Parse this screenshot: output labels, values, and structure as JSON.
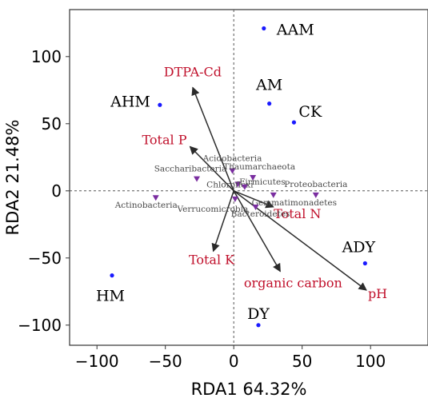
{
  "chart_data": {
    "type": "scatter",
    "title": "",
    "xlabel": "RDA1 64.32%",
    "ylabel": "RDA2 21.48%",
    "xlim": [
      -120,
      142
    ],
    "ylim": [
      -115,
      135
    ],
    "xticks": [
      -100,
      -50,
      0,
      50,
      100
    ],
    "yticks": [
      -100,
      -50,
      0,
      50,
      100
    ],
    "zero_lines": true,
    "grid": false,
    "colors": {
      "sample_point": "#1a1aff",
      "env_label": "#c0102b",
      "arrow": "#2b2b2b",
      "taxa_marker": "#7a2da0",
      "taxa_label": "#4a4a4a"
    },
    "samples": [
      {
        "label": "AAM",
        "x": 22,
        "y": 121
      },
      {
        "label": "AHM",
        "x": -54,
        "y": 64
      },
      {
        "label": "AM",
        "x": 26,
        "y": 65
      },
      {
        "label": "CK",
        "x": 44,
        "y": 51
      },
      {
        "label": "ADY",
        "x": 96,
        "y": -54
      },
      {
        "label": "HM",
        "x": -89,
        "y": -63
      },
      {
        "label": "DY",
        "x": 18,
        "y": -100
      }
    ],
    "environmental_vectors": [
      {
        "label": "DTPA-Cd",
        "x": -30,
        "y": 77
      },
      {
        "label": "Total P",
        "x": -32,
        "y": 33
      },
      {
        "label": "Total N",
        "x": 29,
        "y": -12
      },
      {
        "label": "Total K",
        "x": -15,
        "y": -45
      },
      {
        "label": "organic carbon",
        "x": 34,
        "y": -60
      },
      {
        "label": "pH",
        "x": 97,
        "y": -74
      }
    ],
    "taxa": [
      {
        "label": "Acidobacteria",
        "x": -1,
        "y": 15
      },
      {
        "label": "Saccharibacteria",
        "x": -27,
        "y": 9
      },
      {
        "label": "Chloroflexi",
        "x": 3,
        "y": 5
      },
      {
        "label": "Thaumarchaeota",
        "x": 14,
        "y": 10
      },
      {
        "label": "Firmicutes",
        "x": 8,
        "y": 3
      },
      {
        "label": "Proteobacteria",
        "x": 60,
        "y": -3
      },
      {
        "label": "Actinobacteria",
        "x": -57,
        "y": -5
      },
      {
        "label": "Verrucomicrobia",
        "x": 1,
        "y": -6
      },
      {
        "label": "Gemmatimonadetes",
        "x": 29,
        "y": -3
      },
      {
        "label": "Bacteroidetes",
        "x": 16,
        "y": -12
      }
    ]
  }
}
